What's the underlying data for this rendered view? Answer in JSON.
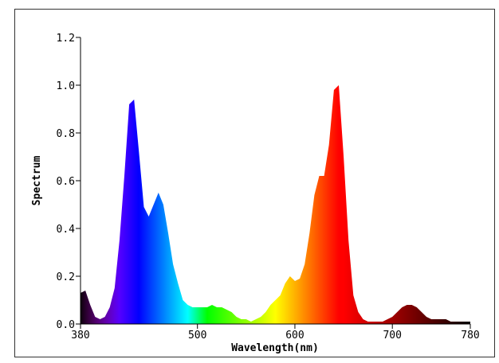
{
  "chart_data": {
    "type": "area",
    "title": "",
    "xlabel": "Wavelength(nm)",
    "ylabel": "Spectrum",
    "xlim": [
      380,
      780
    ],
    "ylim": [
      0,
      1.2
    ],
    "xticks": [
      380,
      500,
      600,
      700,
      780
    ],
    "xtick_labels": [
      "380",
      "500",
      "600",
      "700",
      "780"
    ],
    "yticks": [
      0,
      0.2,
      0.4,
      0.6,
      0.8,
      1.0,
      1.2
    ],
    "ytick_labels": [
      "0.0",
      "0.2",
      "0.4",
      "0.6",
      "0.8",
      "1.0",
      "1.2"
    ],
    "fill": "visible-spectrum color gradient by wavelength",
    "grid": false,
    "x": [
      380,
      385,
      390,
      395,
      400,
      405,
      410,
      415,
      420,
      425,
      430,
      435,
      440,
      445,
      450,
      455,
      460,
      465,
      470,
      475,
      480,
      485,
      490,
      495,
      500,
      505,
      510,
      515,
      520,
      525,
      530,
      535,
      540,
      545,
      550,
      555,
      560,
      565,
      570,
      575,
      580,
      585,
      590,
      595,
      600,
      605,
      610,
      615,
      620,
      625,
      630,
      635,
      640,
      645,
      650,
      655,
      660,
      665,
      670,
      675,
      680,
      685,
      690,
      695,
      700,
      705,
      710,
      715,
      720,
      725,
      730,
      735,
      740,
      745,
      750,
      755,
      760,
      765,
      770,
      775,
      780
    ],
    "values": [
      0.13,
      0.14,
      0.08,
      0.03,
      0.02,
      0.03,
      0.07,
      0.15,
      0.35,
      0.62,
      0.92,
      0.94,
      0.72,
      0.49,
      0.45,
      0.5,
      0.55,
      0.5,
      0.38,
      0.25,
      0.17,
      0.1,
      0.08,
      0.07,
      0.07,
      0.07,
      0.07,
      0.08,
      0.07,
      0.07,
      0.06,
      0.05,
      0.03,
      0.02,
      0.02,
      0.01,
      0.02,
      0.03,
      0.05,
      0.08,
      0.1,
      0.12,
      0.17,
      0.2,
      0.18,
      0.19,
      0.25,
      0.38,
      0.54,
      0.62,
      0.62,
      0.75,
      0.98,
      1.0,
      0.7,
      0.35,
      0.12,
      0.05,
      0.02,
      0.01,
      0.01,
      0.01,
      0.01,
      0.02,
      0.03,
      0.05,
      0.07,
      0.08,
      0.08,
      0.07,
      0.05,
      0.03,
      0.02,
      0.02,
      0.02,
      0.02,
      0.01,
      0.01,
      0.01,
      0.01,
      0.01
    ]
  }
}
